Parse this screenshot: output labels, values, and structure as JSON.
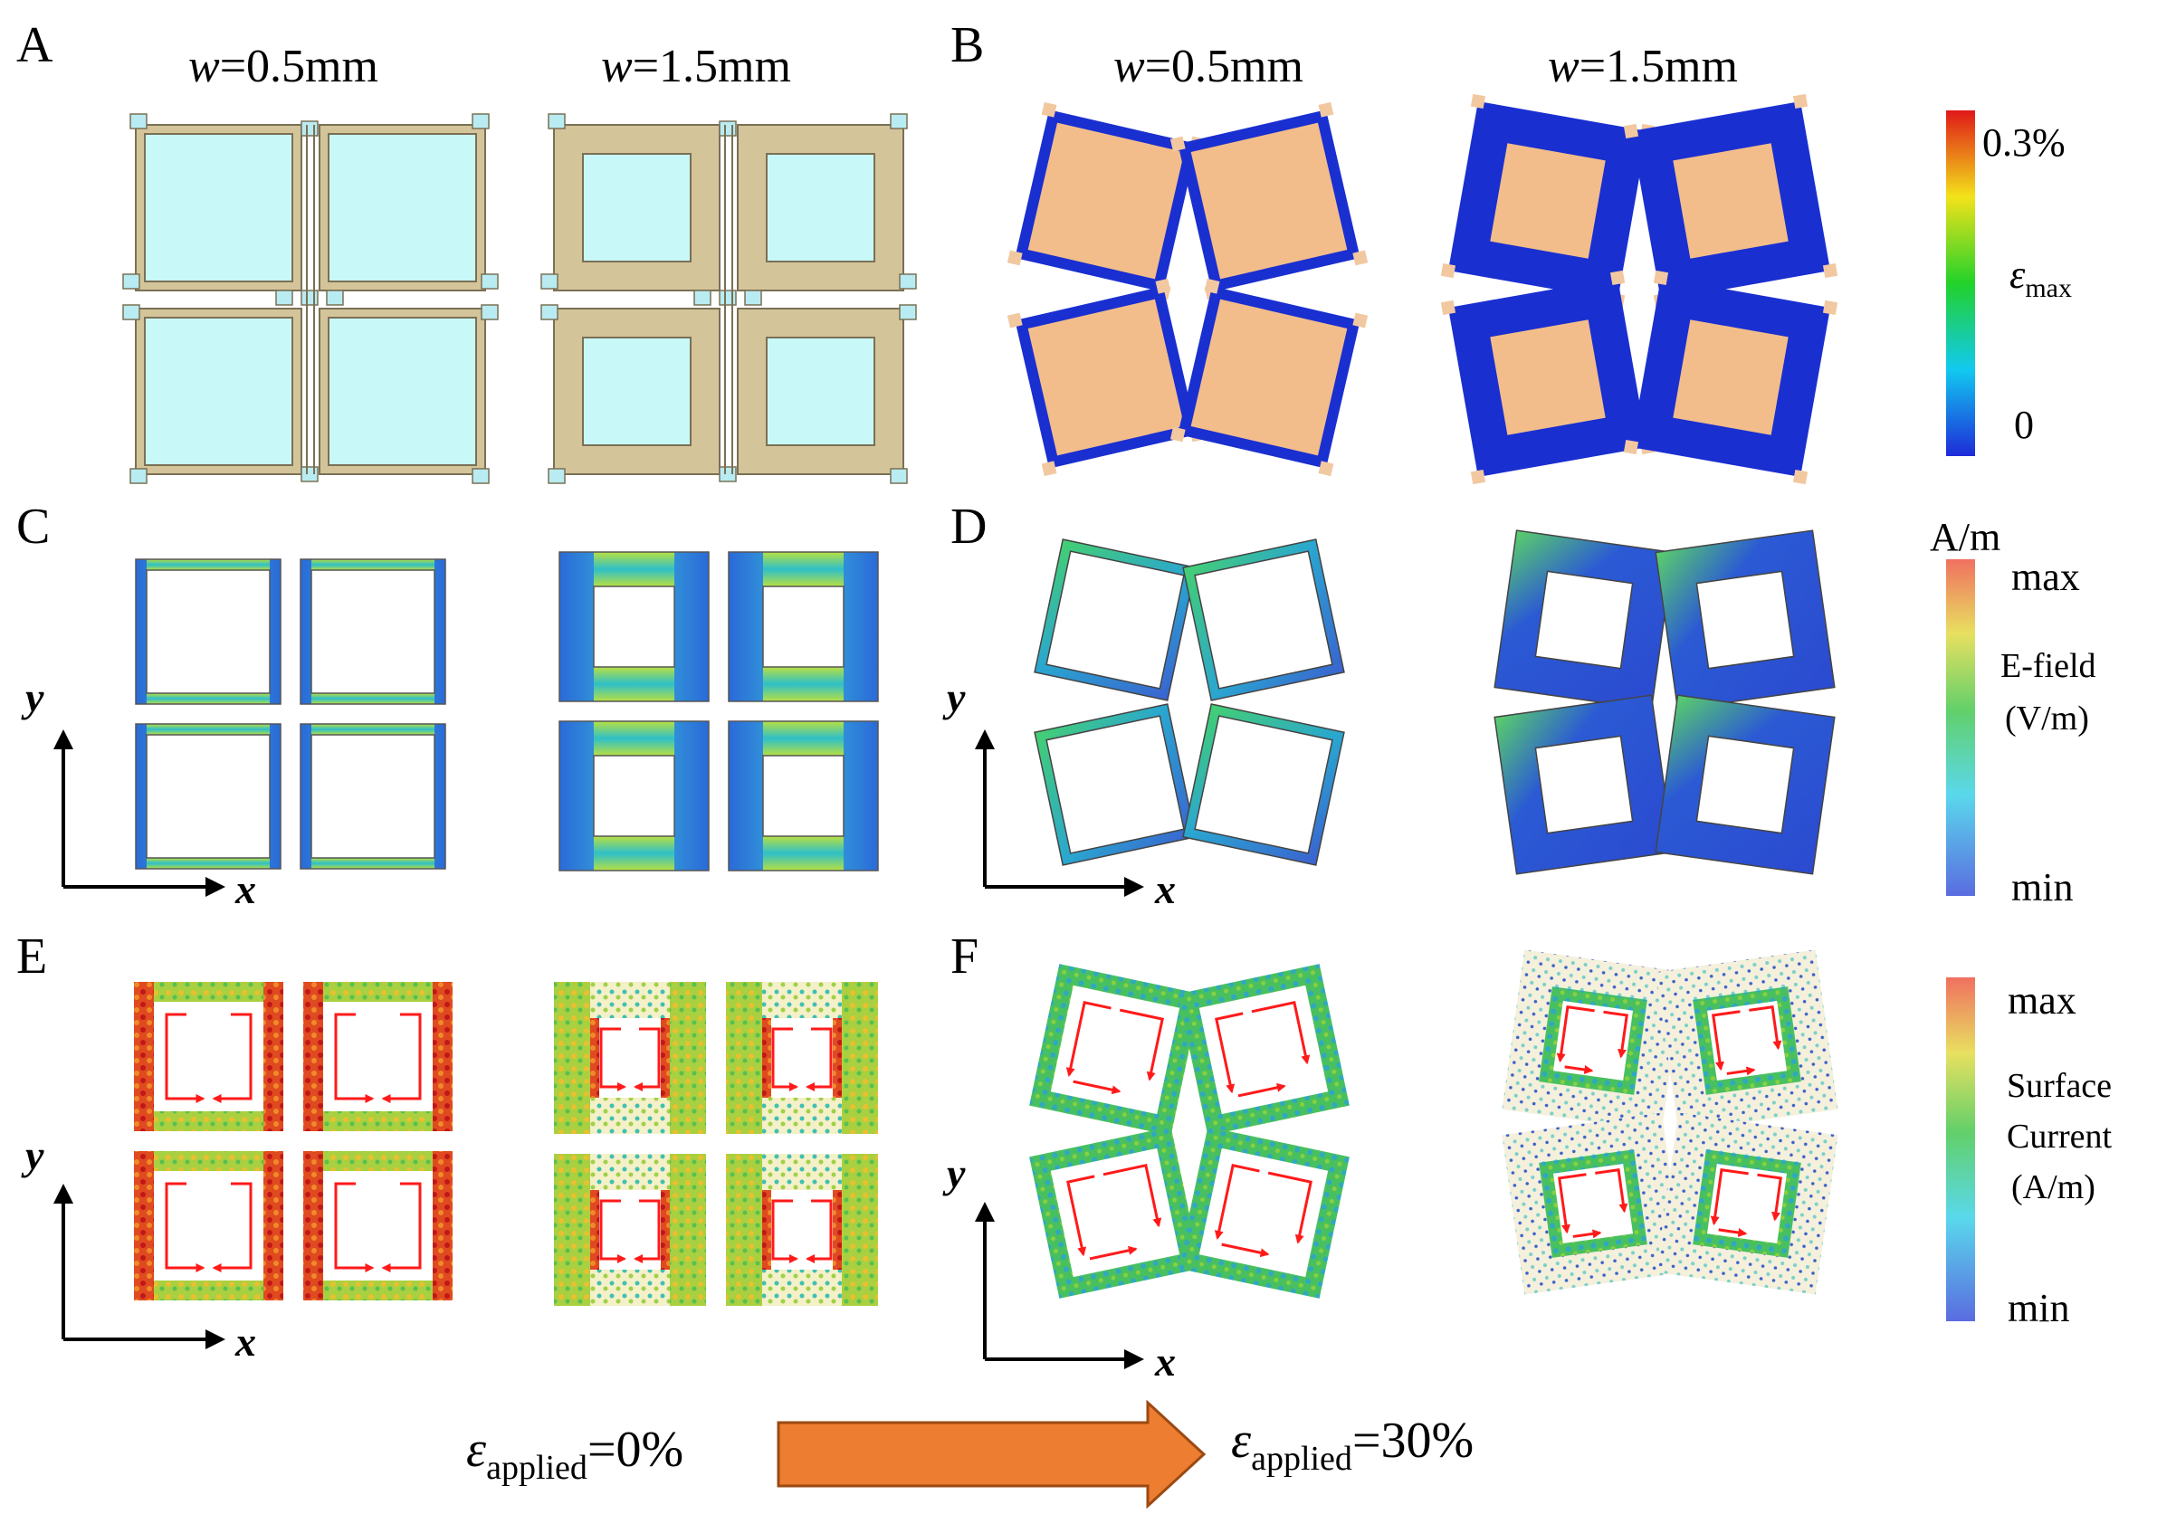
{
  "figure": {
    "panel_letters": [
      "A",
      "B",
      "C",
      "D",
      "E",
      "F"
    ],
    "width_labels": {
      "w_symbol": "w",
      "small": "=0.5mm",
      "large": "=1.5mm"
    },
    "axes": {
      "x": "x",
      "y": "y"
    },
    "colorbar_strain": {
      "top": "0.3%",
      "bottom": "0",
      "symbol": "ε",
      "subscript": "max"
    },
    "colorbar_efield": {
      "unit_top": "A/m",
      "max": "max",
      "min": "min",
      "name_line1": "E-field",
      "name_line2": "(V/m)"
    },
    "colorbar_current": {
      "max": "max",
      "min": "min",
      "name_line1": "Surface",
      "name_line2": "Current",
      "name_line3": "(A/m)"
    },
    "strain_labels": {
      "symbol": "ε",
      "subscript": "applied",
      "start_value": "=0%",
      "end_value": "=30%"
    },
    "colors": {
      "frame_tan": "#d4c49a",
      "frame_stroke": "#7a7055",
      "inner_cyan": "#c8f8f8",
      "deformed_blue": "#1a2fd0",
      "deformed_fill": "#f2bd8a",
      "current_arrow": "#ff1a1a",
      "strain_arrow": "#ed7d31",
      "strain_arrow_stroke": "#9b4a12"
    }
  }
}
